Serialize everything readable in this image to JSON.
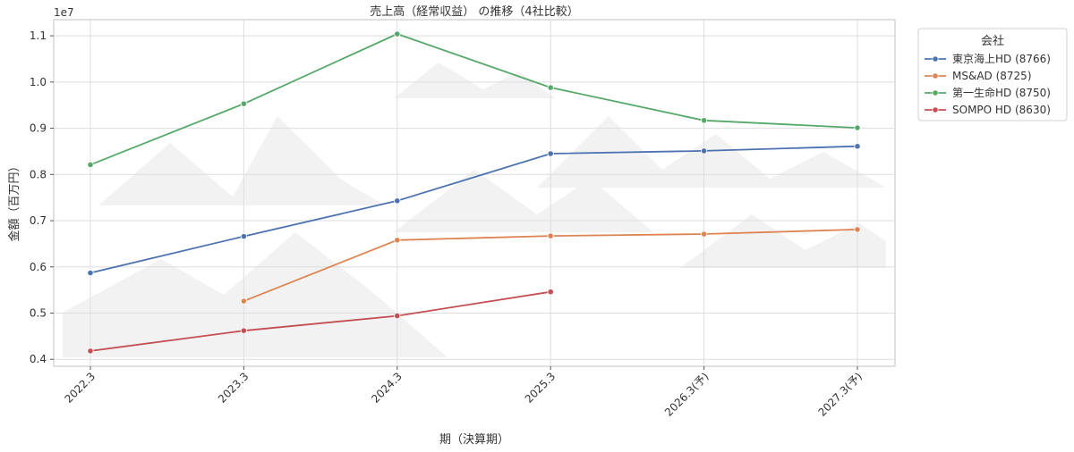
{
  "chart_data": {
    "type": "line",
    "title": "売上高（経常収益） の推移（4社比較）",
    "xlabel": "期（決算期）",
    "ylabel": "金額（百万円）",
    "y_offset_label": "1e7",
    "categories": [
      "2022.3",
      "2023.3",
      "2024.3",
      "2025.3",
      "2026.3(予)",
      "2027.3(予)"
    ],
    "y_ticks": [
      "0.4",
      "0.5",
      "0.6",
      "0.7",
      "0.8",
      "0.9",
      "1.0",
      "1.1"
    ],
    "ylim": [
      0.385,
      1.135
    ],
    "grid": true,
    "legend_title": "会社",
    "legend_position": "outside-right",
    "series": [
      {
        "name": "東京海上HD (8766)",
        "color": "#4c72b0",
        "values": [
          0.587,
          0.666,
          0.743,
          0.845,
          0.851,
          0.861
        ]
      },
      {
        "name": "MS&AD (8725)",
        "color": "#dd8452",
        "values": [
          null,
          0.526,
          0.658,
          0.667,
          0.671,
          0.681
        ]
      },
      {
        "name": "第一生命HD (8750)",
        "color": "#55a868",
        "values": [
          0.821,
          0.953,
          1.104,
          0.988,
          0.917,
          0.901
        ]
      },
      {
        "name": "SOMPO HD (8630)",
        "color": "#c44e52",
        "values": [
          0.418,
          0.462,
          0.494,
          0.546,
          null,
          null
        ]
      }
    ]
  }
}
